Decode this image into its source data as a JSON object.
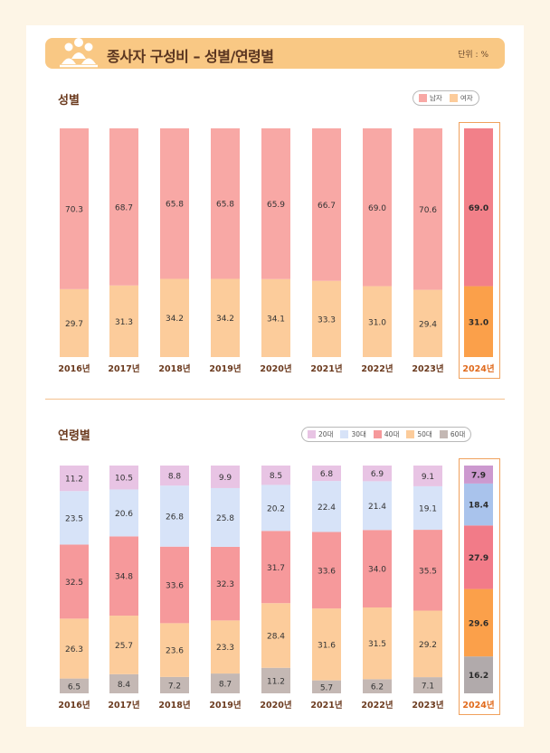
{
  "header": {
    "title": "종사자 구성비 – 성별/연령별",
    "unit": "단위 : %"
  },
  "colors": {
    "male": "#f8a8a5",
    "female": "#fccc9b",
    "male_hl": "#f28089",
    "female_hl": "#fba04a",
    "age20": "#e8c4e4",
    "age30": "#d7e3f8",
    "age40": "#f6999b",
    "age50": "#fccc9b",
    "age60": "#c4b8b4",
    "age20_hl": "#cc99cf",
    "age30_hl": "#a9c3ec",
    "age40_hl": "#f27b88",
    "age50_hl": "#fba04a",
    "age60_hl": "#b1aaab",
    "label_dark": "#6b3a1e",
    "label_hl": "#e06a1c"
  },
  "chart_data": [
    {
      "type": "bar",
      "stacked": true,
      "title": "성별",
      "categories": [
        "2016년",
        "2017년",
        "2018년",
        "2019년",
        "2020년",
        "2021년",
        "2022년",
        "2023년",
        "2024년"
      ],
      "highlight": "2024년",
      "legend": [
        "남자",
        "여자"
      ],
      "series": [
        {
          "name": "남자",
          "values": [
            70.3,
            68.7,
            65.8,
            65.8,
            65.9,
            66.7,
            69.0,
            70.6,
            69.0
          ]
        },
        {
          "name": "여자",
          "values": [
            29.7,
            31.3,
            34.2,
            34.2,
            34.1,
            33.3,
            31.0,
            29.4,
            31.0
          ]
        }
      ],
      "labels": {
        "남자": [
          "70.3",
          "68.7",
          "65.8",
          "65.8",
          "65.9",
          "66.7",
          "69.0",
          "70.6",
          "69.0"
        ],
        "여자": [
          "29.7",
          "31.3",
          "34.2",
          "34.2",
          "34.1",
          "33.3",
          "31.0",
          "29.4",
          "31.0"
        ]
      }
    },
    {
      "type": "bar",
      "stacked": true,
      "title": "연령별",
      "categories": [
        "2016년",
        "2017년",
        "2018년",
        "2019년",
        "2020년",
        "2021년",
        "2022년",
        "2023년",
        "2024년"
      ],
      "highlight": "2024년",
      "legend": [
        "20대",
        "30대",
        "40대",
        "50대",
        "60대"
      ],
      "series": [
        {
          "name": "20대",
          "values": [
            11.2,
            10.5,
            8.8,
            9.9,
            8.5,
            6.8,
            6.9,
            9.1,
            7.9
          ]
        },
        {
          "name": "30대",
          "values": [
            23.5,
            20.6,
            26.8,
            25.8,
            20.2,
            22.4,
            21.4,
            19.1,
            18.4
          ]
        },
        {
          "name": "40대",
          "values": [
            32.5,
            34.8,
            33.6,
            32.3,
            31.7,
            33.6,
            34.0,
            35.5,
            27.9
          ]
        },
        {
          "name": "50대",
          "values": [
            26.3,
            25.7,
            23.6,
            23.3,
            28.4,
            31.6,
            31.5,
            29.2,
            29.6
          ]
        },
        {
          "name": "60대",
          "values": [
            6.5,
            8.4,
            7.2,
            8.7,
            11.2,
            5.7,
            6.2,
            7.1,
            16.2
          ]
        }
      ],
      "labels": {
        "20대": [
          "11.2",
          "10.5",
          "8.8",
          "9.9",
          "8.5",
          "6.8",
          "6.9",
          "9.1",
          "7.9"
        ],
        "30대": [
          "23.5",
          "20.6",
          "26.8",
          "25.8",
          "20.2",
          "22.4",
          "21.4",
          "19.1",
          "18.4"
        ],
        "40대": [
          "32.5",
          "34.8",
          "33.6",
          "32.3",
          "31.7",
          "33.6",
          "34.0",
          "35.5",
          "27.9"
        ],
        "50대": [
          "26.3",
          "25.7",
          "23.6",
          "23.3",
          "28.4",
          "31.6",
          "31.5",
          "29.2",
          "29.6"
        ],
        "60대": [
          "6.5",
          "8.4",
          "7.2",
          "8.7",
          "11.2",
          "5.7",
          "6.2",
          "7.1",
          "16.2"
        ]
      }
    }
  ]
}
